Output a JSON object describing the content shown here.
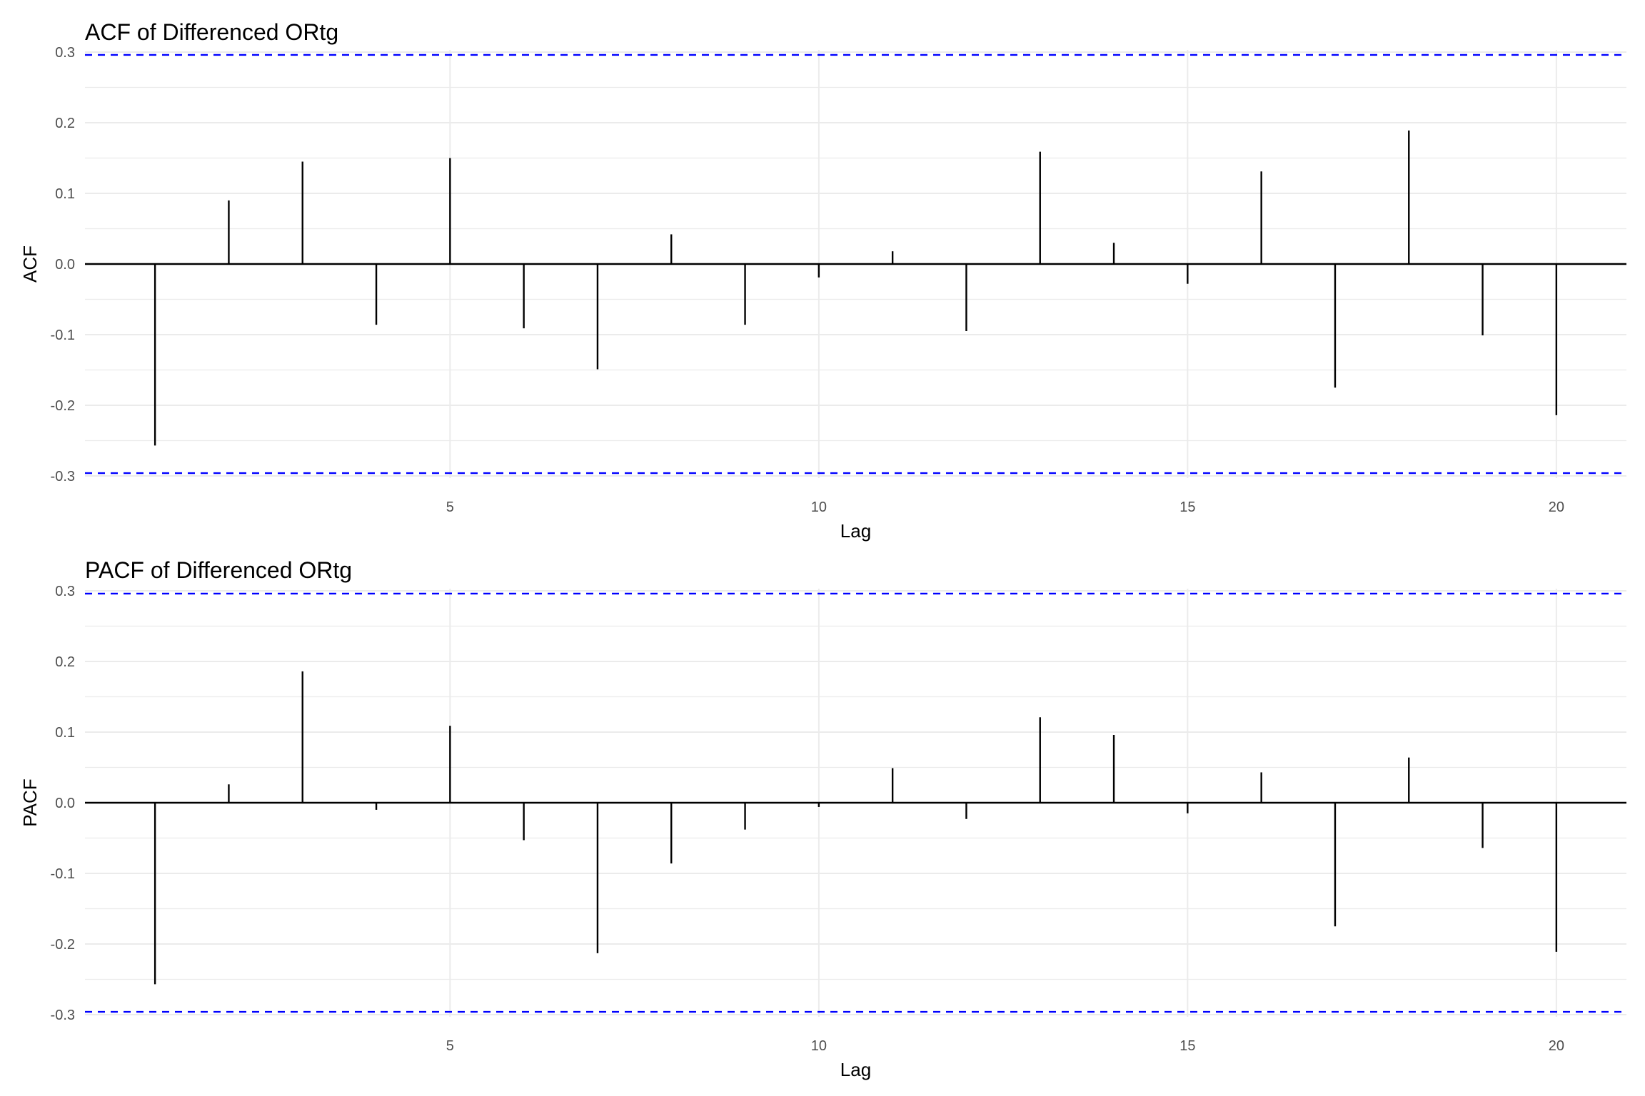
{
  "chart_data": [
    {
      "type": "bar",
      "title": "ACF of Differenced ORtg",
      "xlabel": "Lag",
      "ylabel": "ACF",
      "x_ticks": [
        5,
        10,
        15,
        20
      ],
      "y_ticks": [
        "-0.3",
        "-0.2",
        "-0.1",
        "0.0",
        "0.1",
        "0.2",
        "0.3"
      ],
      "xlim": [
        0.05,
        20.95
      ],
      "ylim": [
        -0.3,
        0.3
      ],
      "lags": [
        1,
        2,
        3,
        4,
        5,
        6,
        7,
        8,
        9,
        10,
        11,
        12,
        13,
        14,
        15,
        16,
        17,
        18,
        19,
        20
      ],
      "values": [
        -0.257,
        0.09,
        0.145,
        -0.086,
        0.15,
        -0.091,
        -0.149,
        0.042,
        -0.086,
        -0.019,
        0.018,
        -0.095,
        0.159,
        0.03,
        -0.028,
        0.131,
        -0.175,
        0.189,
        -0.101,
        -0.214
      ],
      "conf_limit": 0.296,
      "conf_color": "#0000ff",
      "grid": true
    },
    {
      "type": "bar",
      "title": "PACF of Differenced ORtg",
      "xlabel": "Lag",
      "ylabel": "PACF",
      "x_ticks": [
        5,
        10,
        15,
        20
      ],
      "y_ticks": [
        "-0.3",
        "-0.2",
        "-0.1",
        "0.0",
        "0.1",
        "0.2",
        "0.3"
      ],
      "xlim": [
        0.05,
        20.95
      ],
      "ylim": [
        -0.3,
        0.3
      ],
      "lags": [
        1,
        2,
        3,
        4,
        5,
        6,
        7,
        8,
        9,
        10,
        11,
        12,
        13,
        14,
        15,
        16,
        17,
        18,
        19,
        20
      ],
      "values": [
        -0.257,
        0.026,
        0.186,
        -0.01,
        0.109,
        -0.053,
        -0.213,
        -0.086,
        -0.038,
        -0.006,
        0.049,
        -0.023,
        0.121,
        0.096,
        -0.015,
        0.043,
        -0.175,
        0.064,
        -0.064,
        -0.211
      ],
      "conf_limit": 0.296,
      "conf_color": "#0000ff",
      "grid": true
    }
  ]
}
